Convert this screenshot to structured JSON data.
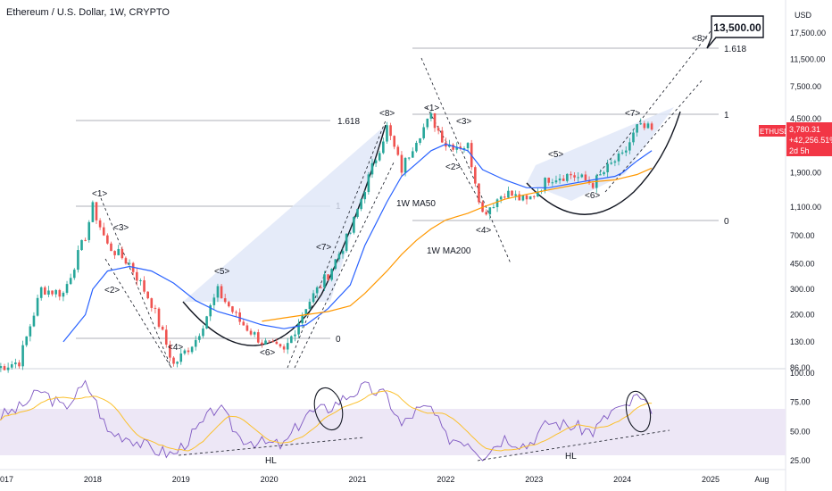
{
  "header": {
    "title": "Ethereum / U.S. Dollar, 1W, CRYPTO"
  },
  "axis": {
    "currency": "USD",
    "price_ticks": [
      "17,500.00",
      "11,500.00",
      "7,500.00",
      "4,500.00",
      "2,900.00",
      "1,900.00",
      "1,100.00",
      "700.00",
      "450.00",
      "300.00",
      "200.00",
      "130.00",
      "86.00"
    ],
    "rsi_ticks": [
      "100.00",
      "75.00",
      "50.00",
      "25.00"
    ],
    "time_labels": [
      "2017",
      "2018",
      "2019",
      "2020",
      "2021",
      "2022",
      "2023",
      "2024",
      "2025",
      "Aug"
    ]
  },
  "price_badge": {
    "symbol": "ETHUSD",
    "price": "3,780.31",
    "change": "+42,256.51%",
    "countdown": "2d 5h",
    "color": "#f23645"
  },
  "target_callout": {
    "text": "13,500.00"
  },
  "fib_labels": [
    {
      "text": "1.618"
    },
    {
      "text": "1"
    },
    {
      "text": "0"
    },
    {
      "text": "1.618"
    },
    {
      "text": "1"
    },
    {
      "text": "0"
    }
  ],
  "wave_labels": [
    {
      "text": "<1>"
    },
    {
      "text": "<2>"
    },
    {
      "text": "<3>"
    },
    {
      "text": "<4>"
    },
    {
      "text": "<5>"
    },
    {
      "text": "<6>"
    },
    {
      "text": "<7>"
    },
    {
      "text": "<8>"
    },
    {
      "text": "<1>"
    },
    {
      "text": "<2>"
    },
    {
      "text": "<3>"
    },
    {
      "text": "<4>"
    },
    {
      "text": "<5>"
    },
    {
      "text": "<6>"
    },
    {
      "text": "<7>"
    },
    {
      "text": "<8>"
    }
  ],
  "ma_labels": {
    "ma50": {
      "text": "1W MA50",
      "color": "#2962ff"
    },
    "ma200": {
      "text": "1W MA200",
      "color": "#ff9800"
    }
  },
  "rsi_labels": [
    {
      "text": "HL"
    },
    {
      "text": "HL"
    }
  ],
  "colors": {
    "up": "#26a69a",
    "down": "#ef5350",
    "ma50": "#2962ff",
    "ma200": "#ff9800",
    "rsi": "#7e57c2",
    "rsi_ma": "#fbc02d",
    "rsi_band": "#ede7f6",
    "channel": "#dfe6f7"
  },
  "chart_data": {
    "type": "candlestick",
    "title": "Ethereum / U.S. Dollar, 1W, CRYPTO",
    "y_scale": "log",
    "ylim": [
      86,
      17500
    ],
    "x": [
      "2016-12",
      "2017-03",
      "2017-06",
      "2017-09",
      "2017-12",
      "2018-01",
      "2018-03",
      "2018-06",
      "2018-09",
      "2018-12",
      "2019-03",
      "2019-06",
      "2019-09",
      "2019-12",
      "2020-03",
      "2020-06",
      "2020-09",
      "2020-12",
      "2021-02",
      "2021-05",
      "2021-07",
      "2021-09",
      "2021-11",
      "2022-01",
      "2022-04",
      "2022-06",
      "2022-09",
      "2022-12",
      "2023-03",
      "2023-06",
      "2023-09",
      "2023-12",
      "2024-01",
      "2024-03",
      "2024-05"
    ],
    "close": [
      86,
      95,
      300,
      280,
      700,
      1100,
      600,
      450,
      240,
      90,
      135,
      290,
      180,
      130,
      110,
      230,
      380,
      740,
      1500,
      3900,
      2000,
      3300,
      4600,
      3000,
      2900,
      1000,
      1400,
      1200,
      1750,
      1850,
      1600,
      2300,
      2450,
      3900,
      3780
    ],
    "series": [
      {
        "name": "1W MA50",
        "values": [
          null,
          null,
          null,
          130,
          200,
          300,
          400,
          430,
          400,
          330,
          250,
          210,
          190,
          170,
          160,
          170,
          220,
          320,
          600,
          1200,
          1800,
          2200,
          2700,
          3000,
          2700,
          2000,
          1700,
          1500,
          1500,
          1600,
          1700,
          1800,
          1900,
          2300,
          2700
        ]
      },
      {
        "name": "1W MA200",
        "values": [
          null,
          null,
          null,
          null,
          null,
          null,
          null,
          null,
          null,
          null,
          null,
          null,
          null,
          180,
          190,
          200,
          210,
          230,
          280,
          400,
          520,
          650,
          780,
          900,
          1000,
          1100,
          1250,
          1350,
          1450,
          1550,
          1650,
          1700,
          1750,
          1850,
          2050
        ]
      }
    ],
    "rsi": {
      "ylim": [
        25,
        100
      ],
      "ticks": [
        25,
        50,
        75,
        100
      ],
      "values": [
        62,
        70,
        85,
        70,
        90,
        82,
        50,
        45,
        35,
        30,
        50,
        72,
        45,
        40,
        38,
        65,
        70,
        82,
        88,
        80,
        55,
        68,
        70,
        45,
        42,
        30,
        45,
        38,
        58,
        55,
        50,
        70,
        68,
        80,
        65
      ]
    },
    "target_price": 13500
  }
}
